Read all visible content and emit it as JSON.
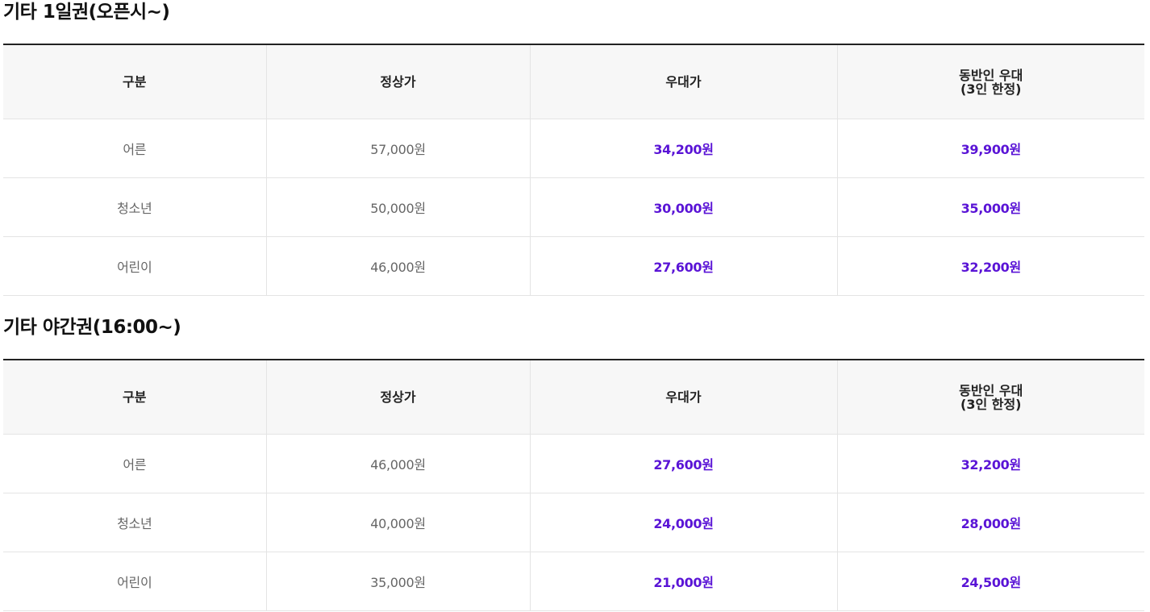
{
  "colors": {
    "discount_text": "#5a14d6",
    "header_bg": "#f7f7f7",
    "top_border": "#222222",
    "row_border": "#e4e4e4"
  },
  "columns": {
    "category": "구분",
    "regular": "정상가",
    "discount": "우대가",
    "companion_line1": "동반인 우대",
    "companion_line2": "(3인 한정)"
  },
  "sections": [
    {
      "title": "기타 1일권(오픈시~)",
      "rows": [
        {
          "category": "어른",
          "regular": "57,000원",
          "discount": "34,200원",
          "companion": "39,900원"
        },
        {
          "category": "청소년",
          "regular": "50,000원",
          "discount": "30,000원",
          "companion": "35,000원"
        },
        {
          "category": "어린이",
          "regular": "46,000원",
          "discount": "27,600원",
          "companion": "32,200원"
        }
      ]
    },
    {
      "title": "기타 야간권(16:00~)",
      "rows": [
        {
          "category": "어른",
          "regular": "46,000원",
          "discount": "27,600원",
          "companion": "32,200원"
        },
        {
          "category": "청소년",
          "regular": "40,000원",
          "discount": "24,000원",
          "companion": "28,000원"
        },
        {
          "category": "어린이",
          "regular": "35,000원",
          "discount": "21,000원",
          "companion": "24,500원"
        }
      ]
    }
  ]
}
